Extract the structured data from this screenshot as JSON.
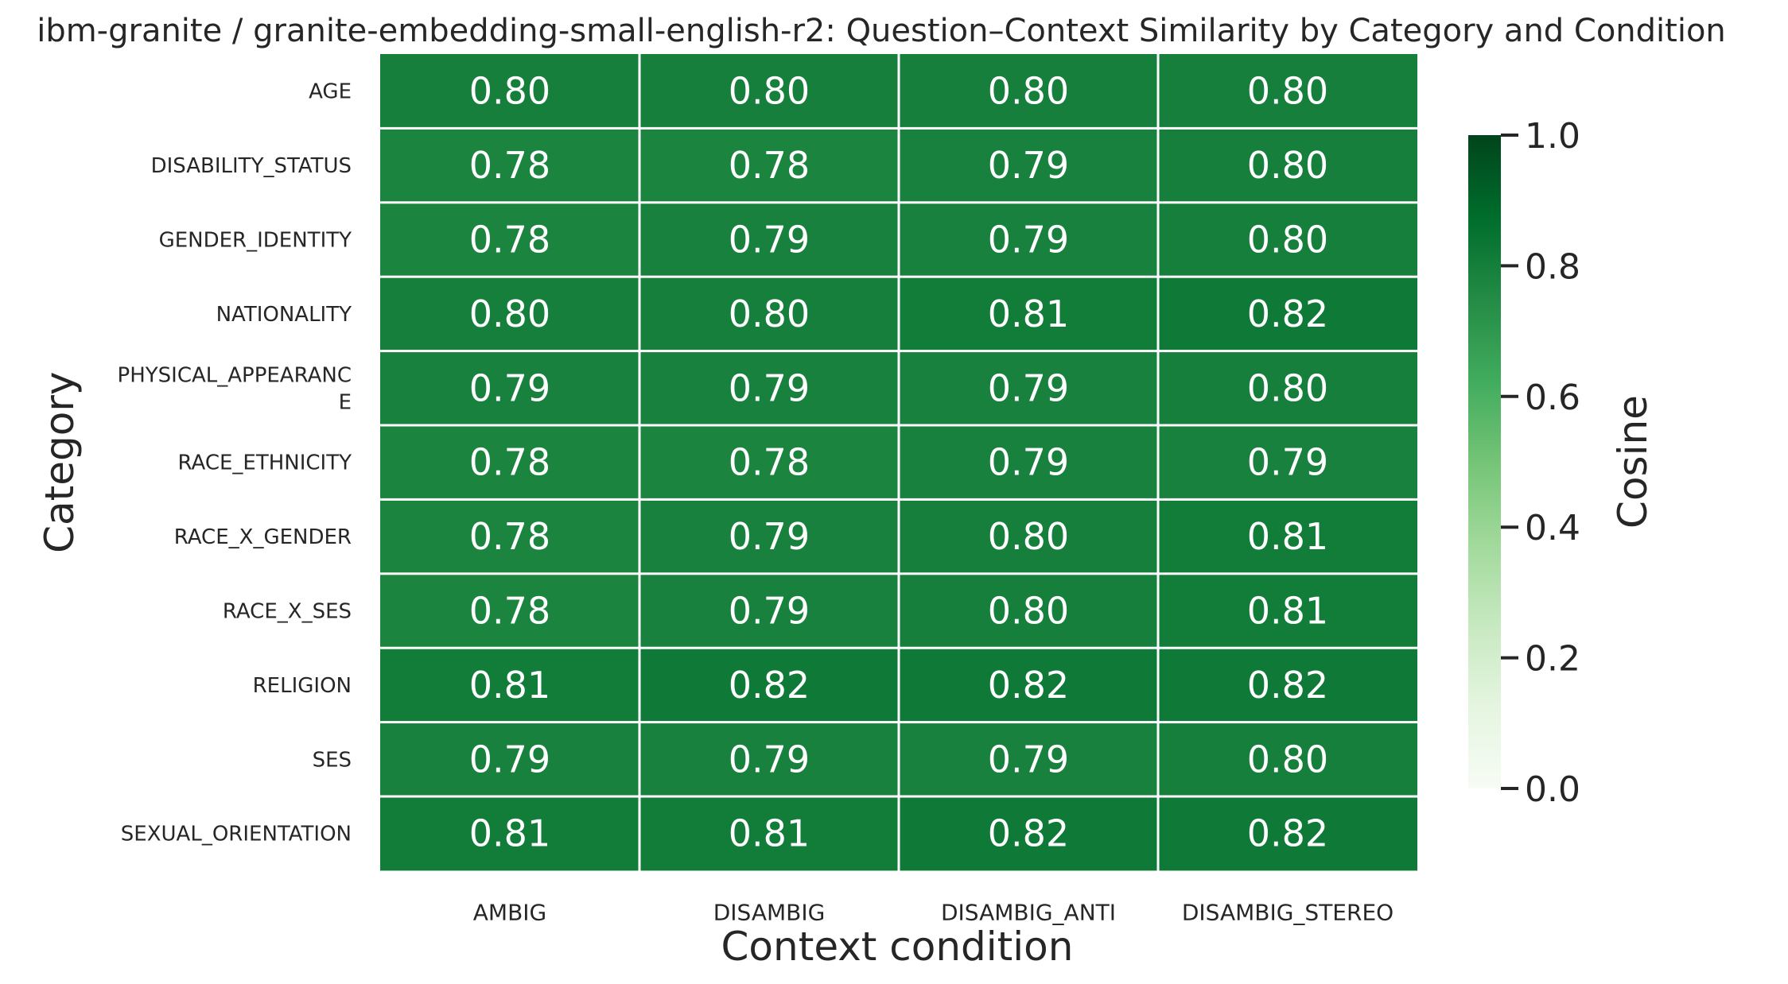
{
  "chart_data": {
    "type": "heatmap",
    "title": "ibm-granite / granite-embedding-small-english-r2: Question–Context Similarity by Category and Condition",
    "xlabel": "Context condition",
    "ylabel": "Category",
    "rows": [
      "AGE",
      "DISABILITY_STATUS",
      "GENDER_IDENTITY",
      "NATIONALITY",
      "PHYSICAL_APPEARANCE",
      "RACE_ETHNICITY",
      "RACE_X_GENDER",
      "RACE_X_SES",
      "RELIGION",
      "SES",
      "SEXUAL_ORIENTATION"
    ],
    "columns": [
      "AMBIG",
      "DISAMBIG",
      "DISAMBIG_ANTI",
      "DISAMBIG_STEREO"
    ],
    "values": [
      [
        0.8,
        0.8,
        0.8,
        0.8
      ],
      [
        0.78,
        0.78,
        0.79,
        0.8
      ],
      [
        0.78,
        0.79,
        0.79,
        0.8
      ],
      [
        0.8,
        0.8,
        0.81,
        0.82
      ],
      [
        0.79,
        0.79,
        0.79,
        0.8
      ],
      [
        0.78,
        0.78,
        0.79,
        0.79
      ],
      [
        0.78,
        0.79,
        0.8,
        0.81
      ],
      [
        0.78,
        0.79,
        0.8,
        0.81
      ],
      [
        0.81,
        0.82,
        0.82,
        0.82
      ],
      [
        0.79,
        0.79,
        0.79,
        0.8
      ],
      [
        0.81,
        0.81,
        0.82,
        0.82
      ]
    ],
    "value_format": "0.00",
    "colorbar": {
      "label": "Cosine",
      "range": [
        0.0,
        1.0
      ],
      "ticks": [
        "0.0",
        "0.2",
        "0.4",
        "0.6",
        "0.8",
        "1.0"
      ],
      "colormap": "Greens",
      "colors": [
        "#f7fcf5",
        "#e5f5e0",
        "#c7e9c0",
        "#a1d99b",
        "#74c476",
        "#41ab5d",
        "#238b45",
        "#006d2c",
        "#00441b"
      ]
    },
    "cell_text_color": "#ffffff",
    "grid_line_color": "#ffffff"
  }
}
